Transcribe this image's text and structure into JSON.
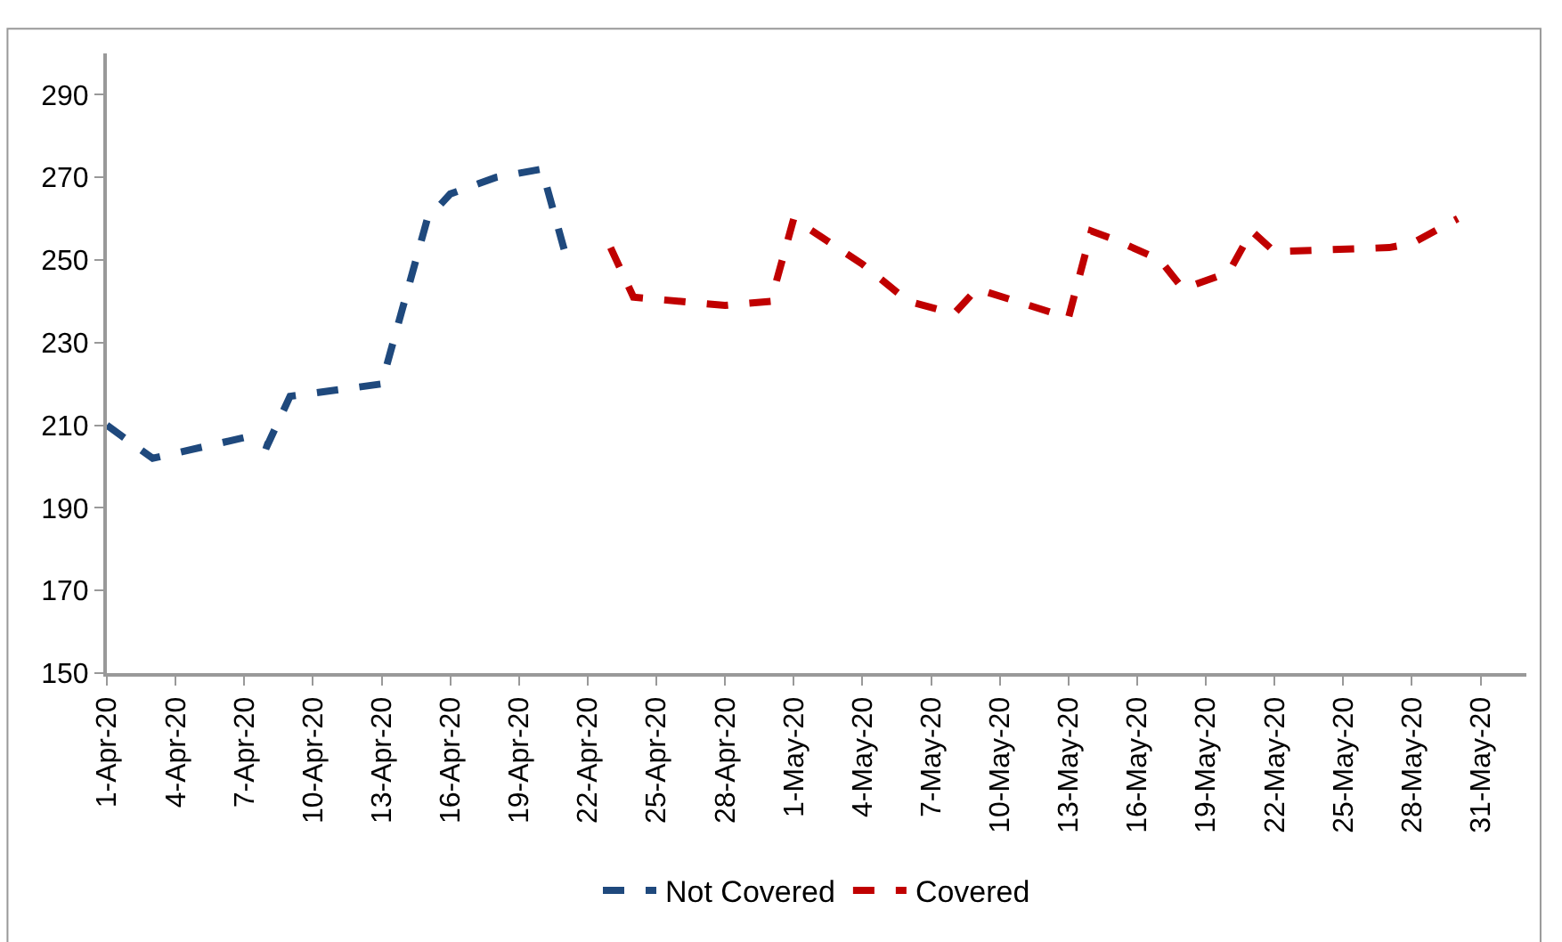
{
  "chart_data": {
    "type": "line",
    "line_style": "dashed",
    "marker": "none",
    "grid": false,
    "legend": "bottom",
    "ylim": [
      150,
      300
    ],
    "yticks": [
      150,
      170,
      190,
      210,
      230,
      250,
      270,
      290
    ],
    "xlim": [
      "--04-01",
      "--06-02"
    ],
    "xticks": [
      {
        "value": "--04-01",
        "label": "1-Apr-20"
      },
      {
        "value": "--04-04",
        "label": "4-Apr-20"
      },
      {
        "value": "--04-07",
        "label": "7-Apr-20"
      },
      {
        "value": "--04-10",
        "label": "10-Apr-20"
      },
      {
        "value": "--04-13",
        "label": "13-Apr-20"
      },
      {
        "value": "--04-16",
        "label": "16-Apr-20"
      },
      {
        "value": "--04-19",
        "label": "19-Apr-20"
      },
      {
        "value": "--04-22",
        "label": "22-Apr-20"
      },
      {
        "value": "--04-25",
        "label": "25-Apr-20"
      },
      {
        "value": "--04-28",
        "label": "28-Apr-20"
      },
      {
        "value": "--05-01",
        "label": "1-May-20"
      },
      {
        "value": "--05-04",
        "label": "4-May-20"
      },
      {
        "value": "--05-07",
        "label": "7-May-20"
      },
      {
        "value": "--05-10",
        "label": "10-May-20"
      },
      {
        "value": "--05-13",
        "label": "13-May-20"
      },
      {
        "value": "--05-16",
        "label": "16-May-20"
      },
      {
        "value": "--05-19",
        "label": "19-May-20"
      },
      {
        "value": "--05-22",
        "label": "22-May-20"
      },
      {
        "value": "--05-25",
        "label": "25-May-20"
      },
      {
        "value": "--05-28",
        "label": "28-May-20"
      },
      {
        "value": "--05-31",
        "label": "31-May-20"
      }
    ],
    "series": [
      {
        "name": "Not Covered",
        "color": "#1f497d",
        "x": [
          "--04-01",
          "--04-03",
          "--04-07",
          "--04-08",
          "--04-09",
          "--04-13",
          "--04-15",
          "--04-16",
          "--04-18",
          "--04-20",
          "--04-21"
        ],
        "values": [
          210,
          202,
          207,
          205,
          217,
          220,
          260,
          266,
          270,
          272,
          252
        ]
      },
      {
        "name": "Covered",
        "color": "#c00000",
        "x": [
          "--04-23",
          "--04-24",
          "--04-28",
          "--04-30",
          "--05-01",
          "--05-04",
          "--05-06",
          "--05-08",
          "--05-09",
          "--05-13",
          "--05-14",
          "--05-15",
          "--05-17",
          "--05-18",
          "--05-20",
          "--05-21",
          "--05-22",
          "--05-27",
          "--05-28",
          "--05-30"
        ],
        "values": [
          253,
          241,
          239,
          240,
          260,
          249,
          240,
          237,
          243,
          236,
          257,
          255,
          250,
          243,
          247,
          257,
          252,
          253,
          254,
          260
        ]
      }
    ]
  }
}
